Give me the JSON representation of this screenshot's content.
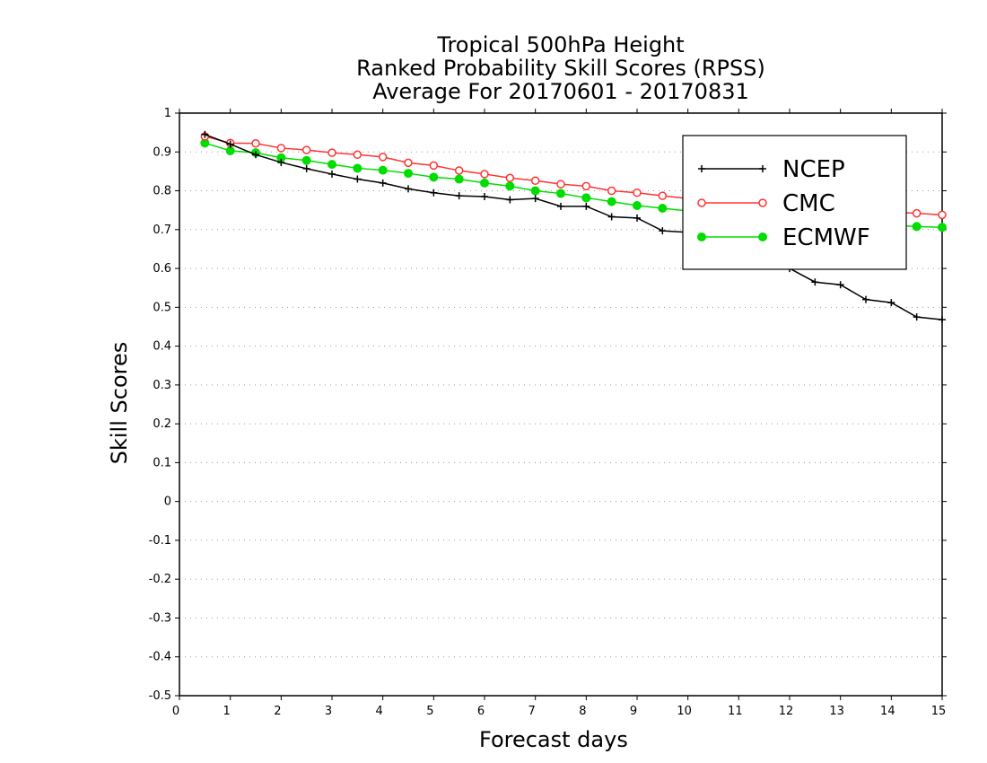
{
  "chart_data": {
    "type": "line",
    "title": [
      "Tropical 500hPa Height",
      "Ranked Probability Skill Scores (RPSS)",
      "Average For 20170601 - 20170831"
    ],
    "xlabel": "Forecast days",
    "ylabel": "Skill Scores",
    "xlim": [
      0,
      15
    ],
    "ylim": [
      -0.5,
      1
    ],
    "xticks": [
      "0",
      "1",
      "2",
      "3",
      "4",
      "5",
      "6",
      "7",
      "8",
      "9",
      "10",
      "11",
      "12",
      "13",
      "14",
      "15"
    ],
    "yticks": [
      "1",
      "0.9",
      "0.8",
      "0.7",
      "0.6",
      "0.5",
      "0.4",
      "0.3",
      "0.2",
      "0.1",
      "0",
      "-0.1",
      "-0.2",
      "-0.3",
      "-0.4",
      "-0.5"
    ],
    "grid": true,
    "legend_position": "top-right",
    "x": [
      0.5,
      1,
      1.5,
      2,
      2.5,
      3,
      3.5,
      4,
      4.5,
      5,
      5.5,
      6,
      6.5,
      7,
      7.5,
      8,
      8.5,
      9,
      9.5,
      10,
      10.5,
      11,
      11.5,
      12,
      12.5,
      13,
      13.5,
      14,
      14.5,
      15
    ],
    "series": [
      {
        "name": "NCEP",
        "color": "#000000",
        "marker": "plus",
        "values": [
          0.945,
          0.92,
          0.893,
          0.873,
          0.857,
          0.843,
          0.83,
          0.82,
          0.805,
          0.795,
          0.787,
          0.785,
          0.777,
          0.78,
          0.76,
          0.76,
          0.733,
          0.73,
          0.697,
          0.693,
          0.68,
          0.66,
          0.63,
          0.6,
          0.565,
          0.558,
          0.52,
          0.512,
          0.475,
          0.468
        ]
      },
      {
        "name": "CMC",
        "color": "#ff3333",
        "marker": "open-circle",
        "values": [
          0.94,
          0.923,
          0.922,
          0.91,
          0.905,
          0.898,
          0.893,
          0.887,
          0.872,
          0.865,
          0.852,
          0.843,
          0.833,
          0.826,
          0.817,
          0.812,
          0.8,
          0.795,
          0.787,
          0.78,
          0.775,
          0.77,
          0.765,
          0.76,
          0.755,
          0.752,
          0.748,
          0.745,
          0.742,
          0.738
        ]
      },
      {
        "name": "ECMWF",
        "color": "#00dd00",
        "marker": "filled-circle",
        "values": [
          0.923,
          0.903,
          0.898,
          0.885,
          0.878,
          0.868,
          0.858,
          0.853,
          0.845,
          0.835,
          0.83,
          0.82,
          0.812,
          0.8,
          0.793,
          0.782,
          0.772,
          0.762,
          0.755,
          0.748,
          0.742,
          0.737,
          0.732,
          0.727,
          0.722,
          0.718,
          0.714,
          0.711,
          0.708,
          0.706
        ]
      }
    ]
  }
}
